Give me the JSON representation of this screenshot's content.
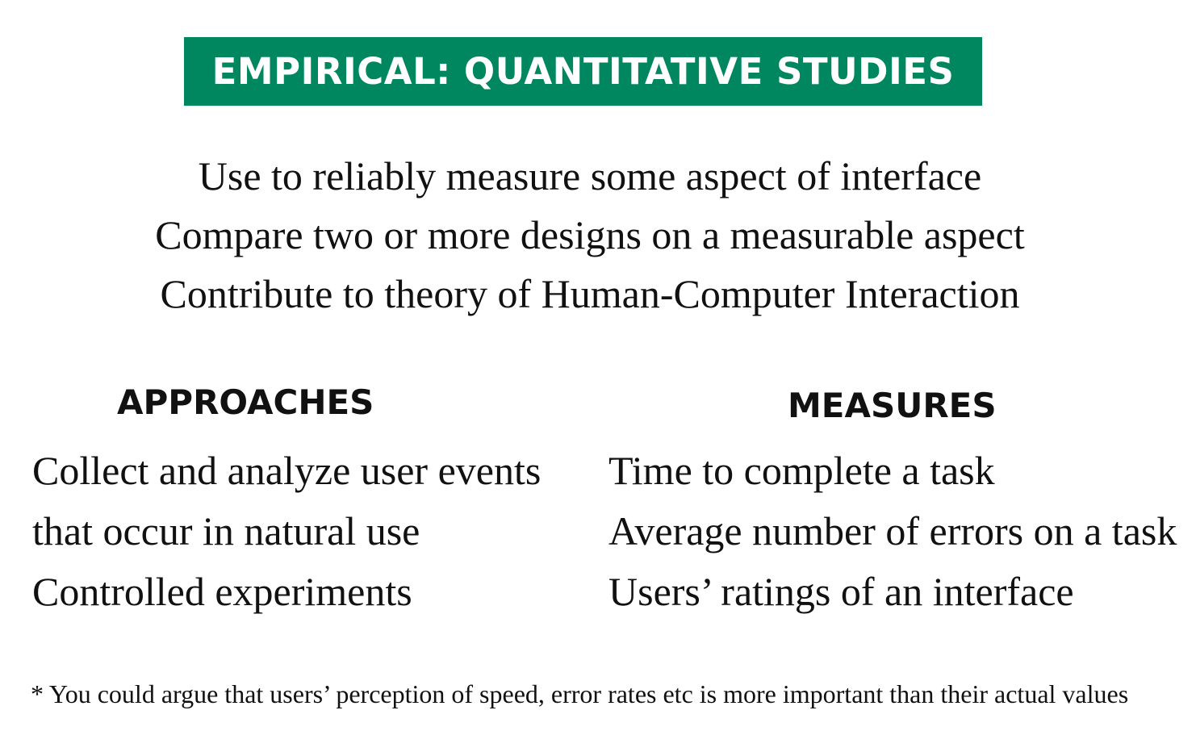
{
  "slide": {
    "title": "EMPIRICAL: QUANTITATIVE STUDIES",
    "intro_lines": [
      "Use to reliably measure some aspect of interface",
      "Compare two or more designs on a measurable aspect",
      "Contribute to theory of Human-Computer Interaction"
    ],
    "approaches": {
      "heading": "APPROACHES",
      "items": [
        "Collect and analyze user events",
        "that occur in natural use",
        "Controlled experiments"
      ]
    },
    "measures": {
      "heading": "MEASURES",
      "items": [
        "Time to complete a task",
        "Average number of errors on a task",
        "Users’ ratings of an interface"
      ]
    },
    "footnote": "* You could argue that users’ perception of speed, error rates etc is more important than their actual values",
    "colors": {
      "title_background": "#00875f",
      "title_text": "#ffffff",
      "body_text": "#111111"
    }
  }
}
